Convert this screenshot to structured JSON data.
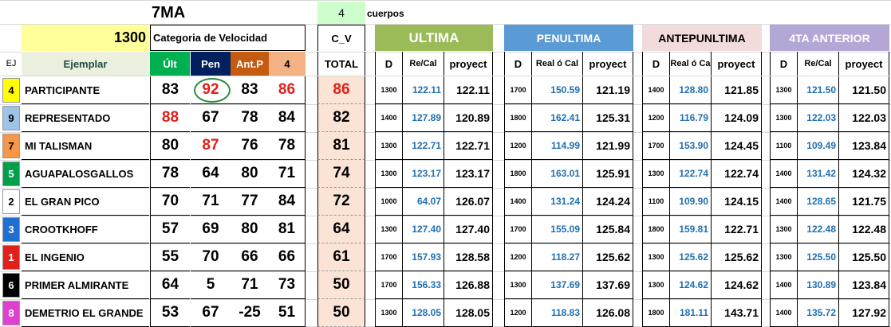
{
  "race": {
    "name": "7MA",
    "cuerpos_value": "4",
    "cuerpos_label": "cuerpos",
    "distance": "1300",
    "category_label": "Categoria de Velocidad",
    "cv_label": "C_V"
  },
  "headers": {
    "ej": "EJ",
    "ejemplar": "Ejemplar",
    "ult": "Últ",
    "pen": "Pen",
    "antp": "Ant.P",
    "four": "4",
    "total": "TOTAL",
    "sections": [
      {
        "title": "ULTIMA",
        "d": "D",
        "rc": "Re/Cal",
        "pr": "proyect",
        "color": "#9bbb59"
      },
      {
        "title": "PENULTIMA",
        "d": "D",
        "rc": "Real ó Cal",
        "pr": "proyect",
        "color": "#5b9bd5"
      },
      {
        "title": "ANTEPUNLTIMA",
        "d": "D",
        "rc": "Real ó Ca",
        "pr": "proyect",
        "color": "#f2dcdb"
      },
      {
        "title": "4TA ANTERIOR",
        "d": "D",
        "rc": "Re/Cal",
        "pr": "proyect",
        "color": "#b4a7d6"
      }
    ]
  },
  "colors": {
    "ult_header": "#00b050",
    "pen_header": "#002060",
    "antp_header": "#c55a11",
    "four_header": "#f4b183",
    "distance_bg": "#ffff99",
    "cuerpos_bg": "#ccffcc",
    "total_bg": "#fbe4d5"
  },
  "rows": [
    {
      "ej": "4",
      "ej_bg": "#ffff00",
      "ej_fg": "#000000",
      "name": "PARTICIPANTE",
      "ult": "83",
      "pen": "92",
      "antp": "83",
      "four": "86",
      "total": "86",
      "races": [
        [
          "1300",
          "122.11",
          "122.11"
        ],
        [
          "1700",
          "150.59",
          "121.19"
        ],
        [
          "1400",
          "128.80",
          "121.85"
        ],
        [
          "1300",
          "121.50",
          "121.50"
        ]
      ]
    },
    {
      "ej": "9",
      "ej_bg": "#9dc3e6",
      "ej_fg": "#000000",
      "name": "REPRESENTADO",
      "ult": "88",
      "pen": "67",
      "antp": "78",
      "four": "84",
      "total": "82",
      "races": [
        [
          "1400",
          "127.89",
          "120.89"
        ],
        [
          "1800",
          "162.41",
          "125.31"
        ],
        [
          "1200",
          "116.79",
          "124.09"
        ],
        [
          "1300",
          "122.03",
          "122.03"
        ]
      ]
    },
    {
      "ej": "7",
      "ej_bg": "#f79646",
      "ej_fg": "#000000",
      "name": "MI TALISMAN",
      "ult": "80",
      "pen": "87",
      "antp": "76",
      "four": "78",
      "total": "81",
      "races": [
        [
          "1300",
          "122.71",
          "122.71"
        ],
        [
          "1200",
          "114.99",
          "121.99"
        ],
        [
          "1700",
          "153.90",
          "124.45"
        ],
        [
          "1100",
          "109.49",
          "123.84"
        ]
      ]
    },
    {
      "ej": "5",
      "ej_bg": "#00a04a",
      "ej_fg": "#ffffff",
      "name": "AGUAPALOSGALLOS",
      "ult": "78",
      "pen": "64",
      "antp": "80",
      "four": "71",
      "total": "74",
      "races": [
        [
          "1300",
          "123.17",
          "123.17"
        ],
        [
          "1800",
          "163.01",
          "125.91"
        ],
        [
          "1300",
          "122.74",
          "122.74"
        ],
        [
          "1400",
          "131.42",
          "124.32"
        ]
      ]
    },
    {
      "ej": "2",
      "ej_bg": "#ffffff",
      "ej_fg": "#000000",
      "name": "EL GRAN PICO",
      "ult": "70",
      "pen": "71",
      "antp": "77",
      "four": "84",
      "total": "72",
      "races": [
        [
          "1000",
          "64.07",
          "126.07"
        ],
        [
          "1400",
          "131.24",
          "124.24"
        ],
        [
          "1100",
          "109.90",
          "124.15"
        ],
        [
          "1400",
          "128.65",
          "121.75"
        ]
      ]
    },
    {
      "ej": "3",
      "ej_bg": "#1f6fd0",
      "ej_fg": "#ffffff",
      "name": "CROOTKHOFF",
      "ult": "57",
      "pen": "69",
      "antp": "80",
      "four": "81",
      "total": "64",
      "races": [
        [
          "1300",
          "127.40",
          "127.40"
        ],
        [
          "1700",
          "155.09",
          "125.84"
        ],
        [
          "1800",
          "159.81",
          "122.71"
        ],
        [
          "1300",
          "122.48",
          "122.48"
        ]
      ]
    },
    {
      "ej": "1",
      "ej_bg": "#e0201b",
      "ej_fg": "#ffffff",
      "name": "EL INGENIO",
      "ult": "55",
      "pen": "70",
      "antp": "66",
      "four": "66",
      "total": "61",
      "races": [
        [
          "1700",
          "157.93",
          "128.58"
        ],
        [
          "1200",
          "118.27",
          "125.62"
        ],
        [
          "1300",
          "125.62",
          "125.62"
        ],
        [
          "1300",
          "125.50",
          "125.50"
        ]
      ]
    },
    {
      "ej": "6",
      "ej_bg": "#000000",
      "ej_fg": "#ffffff",
      "name": "PRIMER ALMIRANTE",
      "ult": "64",
      "pen": "5",
      "antp": "71",
      "four": "73",
      "total": "50",
      "races": [
        [
          "1700",
          "156.33",
          "126.88"
        ],
        [
          "1300",
          "137.69",
          "137.69"
        ],
        [
          "1300",
          "124.62",
          "124.62"
        ],
        [
          "1400",
          "130.89",
          "123.84"
        ]
      ]
    },
    {
      "ej": "8",
      "ej_bg": "#e040d0",
      "ej_fg": "#ffffff",
      "name": "DEMETRIO EL GRANDE",
      "ult": "53",
      "pen": "67",
      "antp": "-25",
      "four": "51",
      "total": "50",
      "races": [
        [
          "1300",
          "128.05",
          "128.05"
        ],
        [
          "1200",
          "118.83",
          "126.08"
        ],
        [
          "1800",
          "181.11",
          "143.71"
        ],
        [
          "1400",
          "135.72",
          "127.92"
        ]
      ]
    }
  ]
}
